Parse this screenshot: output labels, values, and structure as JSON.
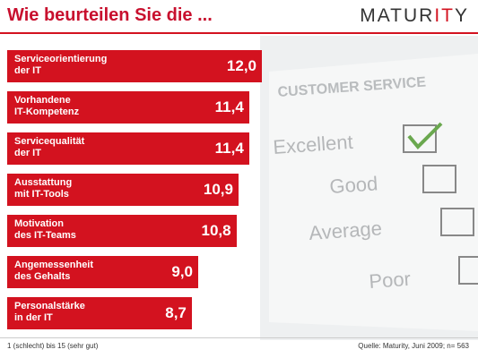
{
  "chart_data": {
    "type": "bar",
    "orientation": "horizontal",
    "title": "Wie beurteilen Sie die ...",
    "categories": [
      "Serviceorientierung\nder IT",
      "Vorhandene\nIT-Kompetenz",
      "Servicequalität\nder IT",
      "Ausstattung\nmit IT-Tools",
      "Motivation\ndes IT-Teams",
      "Angemessenheit\ndes Gehalts",
      "Personalstärke\nin der IT"
    ],
    "values": [
      12.0,
      11.4,
      11.4,
      10.9,
      10.8,
      9.0,
      8.7
    ],
    "value_labels": [
      "12,0",
      "11,4",
      "11,4",
      "10,9",
      "10,8",
      "9,0",
      "8,7"
    ],
    "color": "#d3121f",
    "scale_note": "1 (schlecht) bis 15 (sehr gut)",
    "source": "Quelle: Maturity, Juni 2009; n= 563"
  },
  "logo": {
    "parts": [
      "MATUR",
      "IT",
      "Y"
    ]
  },
  "background_form": {
    "heading": "CUSTOMER SERVICE",
    "options": [
      "Excellent",
      "Good",
      "Average",
      "Poor"
    ]
  }
}
